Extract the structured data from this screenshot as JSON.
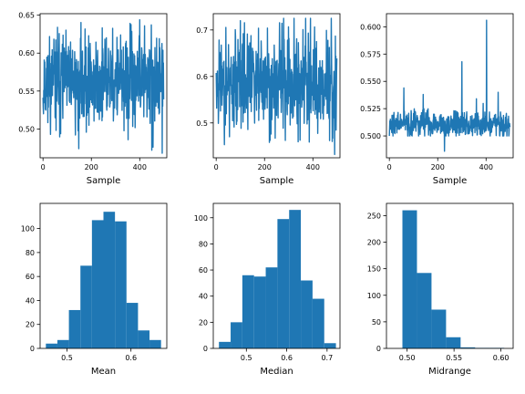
{
  "chart_data": [
    {
      "type": "line",
      "xlabel": "Sample",
      "xlim": [
        -12,
        512
      ],
      "ylim": [
        0.462,
        0.652
      ],
      "xticks": [
        0,
        200,
        400
      ],
      "xtick_labels": [
        "0",
        "200",
        "400"
      ],
      "yticks": [
        0.5,
        0.55,
        0.6,
        0.65
      ],
      "ytick_labels": [
        "0.50",
        "0.55",
        "0.60",
        "0.65"
      ],
      "color": "#1f77b4",
      "series_gen": {
        "n": 500,
        "mean": 0.562,
        "sd": 0.03,
        "lo": 0.468,
        "hi": 0.644,
        "seed": 11
      },
      "extremes": [
        [
          2,
          0.52
        ],
        [
          60,
          0.634
        ],
        [
          148,
          0.474
        ],
        [
          400,
          0.644
        ],
        [
          420,
          0.636
        ],
        [
          455,
          0.476
        ],
        [
          493,
          0.468
        ]
      ]
    },
    {
      "type": "line",
      "xlabel": "Sample",
      "xlim": [
        -12,
        512
      ],
      "ylim": [
        0.425,
        0.735
      ],
      "xticks": [
        0,
        200,
        400
      ],
      "xtick_labels": [
        "0",
        "200",
        "400"
      ],
      "yticks": [
        0.5,
        0.6,
        0.7
      ],
      "ytick_labels": [
        "0.5",
        "0.6",
        "0.7"
      ],
      "color": "#1f77b4",
      "series_gen": {
        "n": 500,
        "mean": 0.59,
        "sd": 0.055,
        "lo": 0.44,
        "hi": 0.725,
        "seed": 23
      },
      "extremes": [
        [
          10,
          0.525
        ],
        [
          100,
          0.72
        ],
        [
          220,
          0.458
        ],
        [
          370,
          0.725
        ],
        [
          480,
          0.46
        ],
        [
          490,
          0.432
        ]
      ]
    },
    {
      "type": "line",
      "xlabel": "Sample",
      "xlim": [
        -12,
        512
      ],
      "ylim": [
        0.48,
        0.612
      ],
      "xticks": [
        0,
        200,
        400
      ],
      "xtick_labels": [
        "0",
        "200",
        "400"
      ],
      "yticks": [
        0.5,
        0.525,
        0.55,
        0.575,
        0.6
      ],
      "ytick_labels": [
        "0.500",
        "0.525",
        "0.550",
        "0.575",
        "0.600"
      ],
      "color": "#1f77b4",
      "series_gen": {
        "n": 500,
        "mean": 0.511,
        "sd": 0.006,
        "lo": 0.5,
        "hi": 0.545,
        "seed": 37
      },
      "extremes": [
        [
          60,
          0.544
        ],
        [
          140,
          0.538
        ],
        [
          228,
          0.486
        ],
        [
          300,
          0.568
        ],
        [
          360,
          0.534
        ],
        [
          402,
          0.606
        ],
        [
          450,
          0.54
        ]
      ]
    },
    {
      "type": "bar",
      "xlabel": "Mean",
      "xlim": [
        0.458,
        0.656
      ],
      "ylim": [
        0,
        121
      ],
      "xticks": [
        0.5,
        0.6
      ],
      "xtick_labels": [
        "0.5",
        "0.6"
      ],
      "yticks": [
        0,
        20,
        40,
        60,
        80,
        100
      ],
      "ytick_labels": [
        "0",
        "20",
        "40",
        "60",
        "80",
        "100"
      ],
      "color": "#1f77b4",
      "bin_edges": [
        0.467,
        0.485,
        0.503,
        0.521,
        0.539,
        0.557,
        0.575,
        0.593,
        0.611,
        0.629,
        0.647
      ],
      "counts": [
        4,
        7,
        32,
        69,
        107,
        114,
        106,
        38,
        15,
        7
      ]
    },
    {
      "type": "bar",
      "xlabel": "Median",
      "xlim": [
        0.418,
        0.732
      ],
      "ylim": [
        0,
        111
      ],
      "xticks": [
        0.5,
        0.6,
        0.7
      ],
      "xtick_labels": [
        "0.5",
        "0.6",
        "0.7"
      ],
      "yticks": [
        0,
        20,
        40,
        60,
        80,
        100
      ],
      "ytick_labels": [
        "0",
        "20",
        "40",
        "60",
        "80",
        "100"
      ],
      "color": "#1f77b4",
      "bin_edges": [
        0.432,
        0.461,
        0.49,
        0.519,
        0.548,
        0.577,
        0.606,
        0.635,
        0.664,
        0.693,
        0.722
      ],
      "counts": [
        5,
        20,
        56,
        55,
        62,
        99,
        106,
        52,
        38,
        4
      ]
    },
    {
      "type": "bar",
      "xlabel": "Midrange",
      "xlim": [
        0.478,
        0.613
      ],
      "ylim": [
        0,
        273
      ],
      "xticks": [
        0.5,
        0.55,
        0.6
      ],
      "xtick_labels": [
        "0.50",
        "0.55",
        "0.60"
      ],
      "yticks": [
        0,
        50,
        100,
        150,
        200,
        250
      ],
      "ytick_labels": [
        "0",
        "50",
        "100",
        "150",
        "200",
        "250"
      ],
      "color": "#1f77b4",
      "bin_edges": [
        0.495,
        0.5105,
        0.526,
        0.5415,
        0.557,
        0.5725,
        0.588,
        0.6035
      ],
      "counts": [
        260,
        142,
        73,
        21,
        2,
        1,
        1
      ]
    }
  ]
}
